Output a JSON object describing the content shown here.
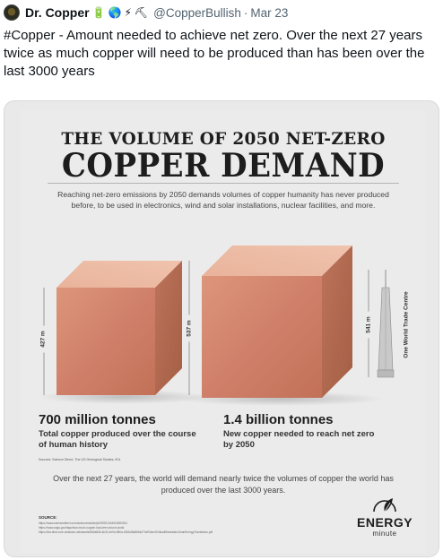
{
  "tweet": {
    "display_name": "Dr. Copper",
    "name_emojis": [
      "🔋",
      "🌎",
      "⚡",
      "⛏"
    ],
    "handle": "@CopperBullish",
    "separator": "·",
    "date": "Mar 23",
    "text": "#Copper - Amount needed to achieve net zero. Over the next 27 years twice as much copper will need to be produced than has been over the last 3000 years"
  },
  "infographic": {
    "title_line1": "THE VOLUME OF 2050 NET-ZERO",
    "title_line2": "COPPER DEMAND",
    "intro": "Reaching net-zero emissions by 2050 demands volumes of copper humanity has never produced before, to be used in electronics, wind and solar installations, nuclear facilities, and more.",
    "cube_small": {
      "height_label": "427 m"
    },
    "cube_large": {
      "height_label": "537 m"
    },
    "tower": {
      "height_label": "541 m",
      "name": "One World Trade Centre"
    },
    "stat_left": {
      "amount": "700 million tonnes",
      "description": "Total copper produced over the course of human history"
    },
    "stat_right": {
      "amount": "1.4 billion tonnes",
      "description": "New copper needed to reach net zero by 2050"
    },
    "sources_note": "Sources: Science Direct, The US Geological Studies, IEA",
    "summary": "Over the next 27 years, the world will demand nearly twice the volumes of copper the world has produced over the last 3000 years.",
    "source_label": "SOURCE:",
    "source_links": [
      "https://www.sciencedirect.com/science/article/pii/S0921344918300041",
      "https://www.usgs.gov/faqs/how-much-copper-has-been-found-world",
      "https://iea.blob.core.windows.net/assets/ffd2a83b-8c30-4e9d-980a-52b6d9a86fdc/TheRoleofCriticalMineralsinCleanEnergyTransitions.pdf"
    ],
    "logo": {
      "line1": "ENERGY",
      "line2": "minute"
    },
    "colors": {
      "copper_front": "#d4876a",
      "copper_top": "#e7ab90",
      "copper_side": "#b46a4d",
      "background": "#ebebeb"
    }
  }
}
